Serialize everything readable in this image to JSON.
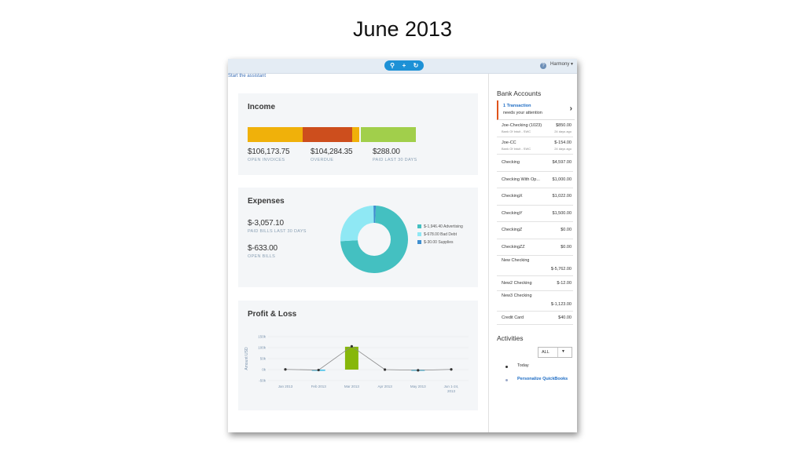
{
  "slide": {
    "title": "June 2013"
  },
  "topbar": {
    "search_icon": "search-icon",
    "add_icon": "plus-icon",
    "recent_icon": "history-icon",
    "user_name": "Harmony",
    "help_icon": "help-icon"
  },
  "assistant_link": "Start the assistant",
  "income": {
    "title": "Income",
    "bar_colors": [
      "#f0b10a",
      "#cd4e1d",
      "#f0b10a",
      "#a1cf4b"
    ],
    "bar_fractions": [
      0.3,
      0.27,
      0.04,
      0.3
    ],
    "open_invoices": {
      "amount": "$106,173.75",
      "label": "OPEN INVOICES"
    },
    "overdue": {
      "amount": "$104,284.35",
      "label": "OVERDUE"
    },
    "paid": {
      "amount": "$288.00",
      "label": "PAID LAST 30 DAYS"
    }
  },
  "expenses": {
    "title": "Expenses",
    "paid_bills": {
      "amount": "$-3,057.10",
      "label": "PAID BILLS LAST 30 DAYS"
    },
    "open_bills": {
      "amount": "$-633.00",
      "label": "OPEN BILLS"
    },
    "legend": [
      {
        "label": "$-1,946.40 Advertising",
        "color": "#44c0c1"
      },
      {
        "label": "$-678.00 Bad Debt",
        "color": "#8fe8f4"
      },
      {
        "label": "$-30.00 Supplies",
        "color": "#3f8fd0"
      }
    ],
    "donut": [
      {
        "value": 1946.4,
        "color": "#44c0c1"
      },
      {
        "value": 678.0,
        "color": "#8fe8f4"
      },
      {
        "value": 30.0,
        "color": "#3f8fd0"
      }
    ]
  },
  "profit_loss": {
    "title": "Profit & Loss",
    "chart_data": {
      "type": "line",
      "ylabel": "Amount USD",
      "ylim": [
        -50000,
        150000
      ],
      "yticks": [
        {
          "value": 150000,
          "label": "150k"
        },
        {
          "value": 100000,
          "label": "100k"
        },
        {
          "value": 50000,
          "label": "50k"
        },
        {
          "value": 0,
          "label": "0k"
        },
        {
          "value": -50000,
          "label": "-50k"
        }
      ],
      "categories": [
        "Jan 2013",
        "Feb 2013",
        "Mar 2013",
        "Apr 2013",
        "May 2013",
        "Jun 1-24, 2013"
      ],
      "series": [
        {
          "values": [
            1000,
            -2000,
            106000,
            0,
            -3000,
            1000
          ],
          "color": "#888888"
        }
      ],
      "bars": [
        {
          "category": "Feb 2013",
          "value": -3000,
          "color": "#44c0e8"
        },
        {
          "category": "Mar 2013",
          "value": 104000,
          "color": "#86b70a"
        },
        {
          "category": "May 2013",
          "value": -3000,
          "color": "#44c0e8"
        }
      ]
    }
  },
  "bank_accounts": {
    "title": "Bank Accounts",
    "attention": {
      "count_text": "1 Transaction",
      "message": "needs your attention"
    },
    "accounts": [
      {
        "name": "Joe-Checking (1023)",
        "balance": "$850.00",
        "sub_left": "Bank Of Intuit - SWC",
        "sub_right": "24 days ago"
      },
      {
        "name": "Joe-CC",
        "balance": "$-154.00",
        "sub_left": "Bank Of Intuit - SWC",
        "sub_right": "24 days ago"
      },
      {
        "name": "Checking",
        "balance": "$4,597.00"
      },
      {
        "name": "Checking With Op...",
        "balance": "$1,000.00"
      },
      {
        "name": "CheckingX",
        "balance": "$1,022.00"
      },
      {
        "name": "CheckingY",
        "balance": "$1,500.00"
      },
      {
        "name": "CheckingZ",
        "balance": "$0.00"
      },
      {
        "name": "CheckingZZ",
        "balance": "$0.00"
      },
      {
        "name": "New Checking",
        "balance": "$-5,762.00"
      },
      {
        "name": "New2 Checking",
        "balance": "$-12.00"
      },
      {
        "name": "New3 Checking",
        "balance": "$-1,123.00"
      },
      {
        "name": "Credit Card",
        "balance": "$40.00"
      }
    ]
  },
  "activities": {
    "title": "Activities",
    "filter": "ALL",
    "items": [
      {
        "label": "Today",
        "color": "#333333"
      },
      {
        "label": "Personalize QuickBooks",
        "color": "#1d6cc4"
      }
    ]
  }
}
